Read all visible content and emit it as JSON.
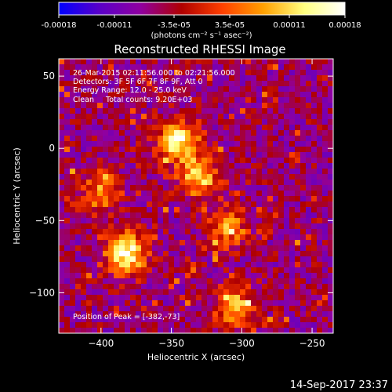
{
  "colorbar": {
    "tick_labels": [
      "-0.00018",
      "-0.00011",
      "-3.5e-05",
      "3.5e-05",
      "0.00011",
      "0.00018"
    ],
    "tick_values": [
      -0.00018,
      -0.00011,
      -3.5e-05,
      3.5e-05,
      0.00011,
      0.00018
    ],
    "range": [
      -0.00018,
      0.00018
    ],
    "unit_label": "(photons cm⁻² s⁻¹ asec⁻²)",
    "colors": [
      "#0000ff",
      "#5a00c8",
      "#9000a0",
      "#b00000",
      "#ff4000",
      "#ffa000",
      "#ffff80",
      "#ffffff"
    ]
  },
  "chart_data": {
    "type": "heatmap",
    "title": "Reconstructed RHESSI Image",
    "xlabel": "Heliocentric X (arcsec)",
    "ylabel": "Heliocentric Y (arcsec)",
    "xlim": [
      -430,
      -235
    ],
    "ylim": [
      -128,
      62
    ],
    "xticks": [
      -400,
      -350,
      -300,
      -250
    ],
    "yticks": [
      -100,
      -50,
      0,
      50
    ],
    "xtick_labels": [
      "−400",
      "−350",
      "−300",
      "−250"
    ],
    "ytick_labels": [
      "−100",
      "−50",
      "0",
      "50"
    ],
    "hotspots": [
      {
        "x": -382,
        "y": -73,
        "level": 1.0
      },
      {
        "x": -345,
        "y": 5,
        "level": 0.9
      },
      {
        "x": -330,
        "y": -20,
        "level": 0.75
      },
      {
        "x": -400,
        "y": -30,
        "level": 0.55
      },
      {
        "x": -305,
        "y": -110,
        "level": 0.7
      },
      {
        "x": -310,
        "y": -55,
        "level": 0.55
      }
    ],
    "annotations": [
      "26-Mar-2015 02:11:56.000 to 02:21:56.000",
      "Detectors: 3F 5F 6F 7F 8F 9F, Att 0",
      "Energy Range: 12.0 - 25.0 keV",
      "Clean     Total counts: 9.20E+03"
    ],
    "peak_label": "Position of Peak = [-382,-73]",
    "peak_position": [
      -382,
      -73
    ]
  },
  "timestamp": "14-Sep-2017 23:37"
}
